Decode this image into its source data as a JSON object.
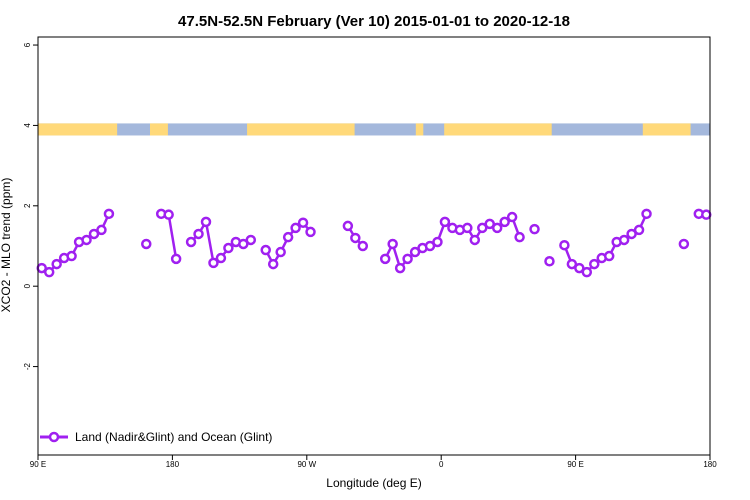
{
  "chart_data": {
    "type": "line",
    "title": "47.5N-52.5N February (Ver 10)   2015-01-01 to 2020-12-18",
    "xlabel": "Longitude (deg E)",
    "ylabel": "XCO2 - MLO trend (ppm)",
    "xlim": [
      90,
      540
    ],
    "ylim": [
      -4.2,
      6.2
    ],
    "x_ticks": [
      {
        "value": 90,
        "label": "90 E"
      },
      {
        "value": 180,
        "label": "180"
      },
      {
        "value": 270,
        "label": "90 W"
      },
      {
        "value": 360,
        "label": "0"
      },
      {
        "value": 450,
        "label": "90 E"
      },
      {
        "value": 540,
        "label": "180"
      }
    ],
    "y_ticks": [
      {
        "value": -2,
        "label": "-2"
      },
      {
        "value": 0,
        "label": "0"
      },
      {
        "value": 2,
        "label": "2"
      },
      {
        "value": 4,
        "label": "4"
      },
      {
        "value": 6,
        "label": "6"
      }
    ],
    "series_color": "#a020f0",
    "land_color": "#ffd97a",
    "ocean_color": "#a4b8dc",
    "surface_strip": {
      "y_range": [
        3.75,
        4.05
      ],
      "land_segments": [
        [
          90,
          143
        ],
        [
          165,
          177
        ],
        [
          230,
          302
        ],
        [
          343,
          348
        ],
        [
          362,
          434
        ],
        [
          495,
          527
        ]
      ]
    },
    "legend": {
      "label": "Land (Nadir&Glint) and Ocean (Glint)",
      "position": "bottom-left"
    },
    "segments": [
      [
        [
          92.5,
          0.45
        ],
        [
          97.5,
          0.35
        ],
        [
          102.5,
          0.55
        ],
        [
          107.5,
          0.7
        ],
        [
          112.5,
          0.75
        ],
        [
          117.5,
          1.1
        ],
        [
          122.5,
          1.15
        ],
        [
          127.5,
          1.3
        ],
        [
          132.5,
          1.4
        ],
        [
          137.5,
          1.8
        ]
      ],
      [
        [
          162.5,
          1.05
        ]
      ],
      [
        [
          172.5,
          1.8
        ],
        [
          177.5,
          1.78
        ],
        [
          182.5,
          0.68
        ]
      ],
      [
        [
          192.5,
          1.1
        ],
        [
          197.5,
          1.3
        ],
        [
          202.5,
          1.6
        ],
        [
          207.5,
          0.58
        ],
        [
          212.5,
          0.7
        ],
        [
          217.5,
          0.95
        ],
        [
          222.5,
          1.1
        ],
        [
          227.5,
          1.05
        ],
        [
          232.5,
          1.15
        ]
      ],
      [
        [
          242.5,
          0.9
        ],
        [
          247.5,
          0.55
        ],
        [
          252.5,
          0.85
        ],
        [
          257.5,
          1.22
        ],
        [
          262.5,
          1.45
        ],
        [
          267.5,
          1.58
        ],
        [
          272.5,
          1.35
        ]
      ],
      [
        [
          297.5,
          1.5
        ],
        [
          302.5,
          1.2
        ],
        [
          307.5,
          1.0
        ]
      ],
      [
        [
          322.5,
          0.68
        ],
        [
          327.5,
          1.05
        ],
        [
          332.5,
          0.45
        ],
        [
          337.5,
          0.68
        ],
        [
          342.5,
          0.85
        ],
        [
          347.5,
          0.95
        ],
        [
          352.5,
          1.0
        ],
        [
          357.5,
          1.1
        ],
        [
          362.5,
          1.6
        ],
        [
          367.5,
          1.45
        ],
        [
          372.5,
          1.4
        ],
        [
          377.5,
          1.45
        ],
        [
          382.5,
          1.15
        ],
        [
          387.5,
          1.45
        ],
        [
          392.5,
          1.55
        ],
        [
          397.5,
          1.45
        ],
        [
          402.5,
          1.6
        ],
        [
          407.5,
          1.72
        ],
        [
          412.5,
          1.22
        ]
      ],
      [
        [
          422.5,
          1.42
        ]
      ],
      [
        [
          432.5,
          0.62
        ]
      ],
      [
        [
          442.5,
          1.02
        ],
        [
          447.5,
          0.55
        ],
        [
          452.5,
          0.45
        ],
        [
          457.5,
          0.35
        ],
        [
          462.5,
          0.55
        ],
        [
          467.5,
          0.7
        ],
        [
          472.5,
          0.75
        ],
        [
          477.5,
          1.1
        ],
        [
          482.5,
          1.15
        ],
        [
          487.5,
          1.3
        ],
        [
          492.5,
          1.4
        ],
        [
          497.5,
          1.8
        ]
      ],
      [
        [
          522.5,
          1.05
        ]
      ],
      [
        [
          532.5,
          1.8
        ],
        [
          537.5,
          1.78
        ]
      ]
    ]
  }
}
